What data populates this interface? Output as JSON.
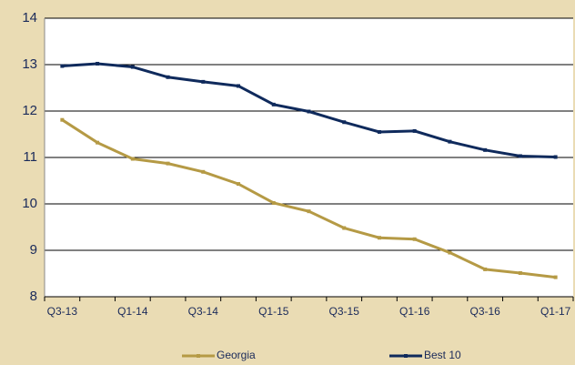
{
  "chart_data": {
    "type": "line",
    "categories": [
      "Q3-13",
      null,
      "Q1-14",
      null,
      "Q3-14",
      null,
      "Q1-15",
      null,
      "Q3-15",
      null,
      "Q1-16",
      null,
      "Q3-16",
      null,
      "Q1-17"
    ],
    "series": [
      {
        "name": "Georgia",
        "color": "#b59a45",
        "values": [
          11.81,
          11.32,
          10.97,
          10.87,
          10.69,
          10.43,
          10.02,
          9.84,
          9.48,
          9.27,
          9.24,
          8.95,
          8.59,
          8.51,
          8.42
        ]
      },
      {
        "name": "Best 10",
        "color": "#0f2a5c",
        "values": [
          12.97,
          13.02,
          12.95,
          12.73,
          12.63,
          12.54,
          12.14,
          11.99,
          11.76,
          11.55,
          11.57,
          11.34,
          11.16,
          11.03,
          11.01
        ]
      }
    ],
    "ylim": [
      8,
      14
    ],
    "yticks": [
      8,
      9,
      10,
      11,
      12,
      13,
      14
    ],
    "grid": true
  }
}
